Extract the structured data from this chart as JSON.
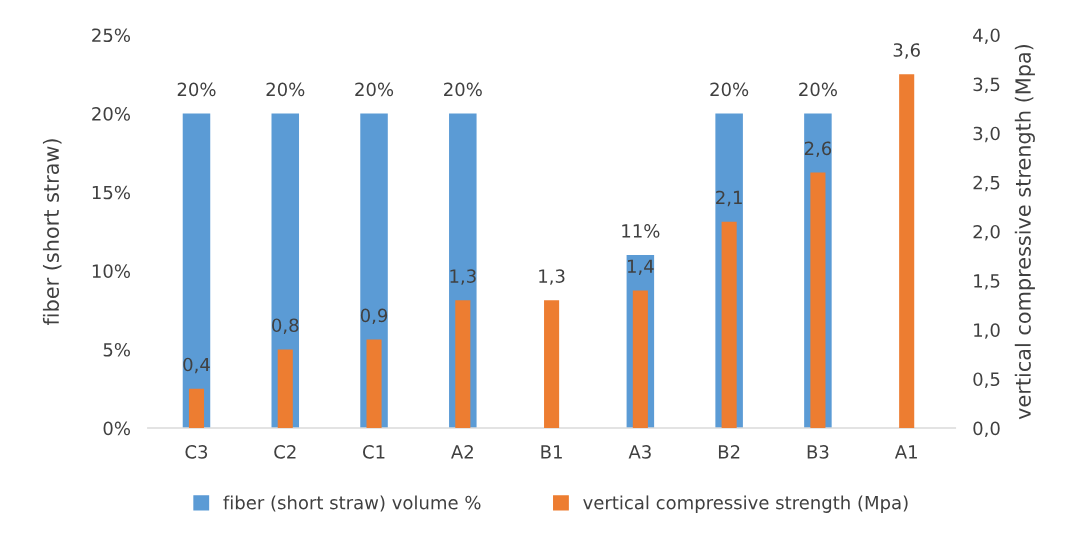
{
  "chart_data": {
    "type": "bar",
    "ylabel": "fiber (short straw)",
    "y2label": "vertical compressive strength (Mpa)",
    "categories": [
      "C3",
      "C2",
      "C1",
      "A2",
      "B1",
      "A3",
      "B2",
      "B3",
      "A1"
    ],
    "series": [
      {
        "name": "fiber (short straw) volume %",
        "color": "#5b9bd5",
        "values": [
          20,
          20,
          20,
          20,
          null,
          11,
          20,
          20,
          null
        ],
        "value_labels": [
          "20%",
          "20%",
          "20%",
          "20%",
          null,
          "11%",
          "20%",
          "20%",
          null
        ]
      },
      {
        "name": "vertical compressive strength (Mpa)",
        "color": "#ed7d31",
        "axis": "y2",
        "values": [
          0.4,
          0.8,
          0.9,
          1.3,
          1.3,
          1.4,
          2.1,
          2.6,
          3.6
        ],
        "value_labels": [
          "0,4",
          "0,8",
          "0,9",
          "1,3",
          "1,3",
          "1,4",
          "2,1",
          "2,6",
          "3,6"
        ]
      }
    ],
    "ylim": [
      0,
      25
    ],
    "yticks": [
      {
        "value": 0,
        "label": "0%"
      },
      {
        "value": 5,
        "label": "5%"
      },
      {
        "value": 10,
        "label": "10%"
      },
      {
        "value": 15,
        "label": "15%"
      },
      {
        "value": 20,
        "label": "20%"
      },
      {
        "value": 25,
        "label": "25%"
      }
    ],
    "y2lim": [
      0,
      4
    ],
    "y2ticks": [
      {
        "value": 0,
        "label": "0,0"
      },
      {
        "value": 0.5,
        "label": "0,5"
      },
      {
        "value": 1,
        "label": "1,0"
      },
      {
        "value": 1.5,
        "label": "1,5"
      },
      {
        "value": 2,
        "label": "2,0"
      },
      {
        "value": 2.5,
        "label": "2,5"
      },
      {
        "value": 3,
        "label": "3,0"
      },
      {
        "value": 3.5,
        "label": "3,5"
      },
      {
        "value": 4,
        "label": "4,0"
      }
    ],
    "grid": false,
    "legend": "bottom"
  }
}
